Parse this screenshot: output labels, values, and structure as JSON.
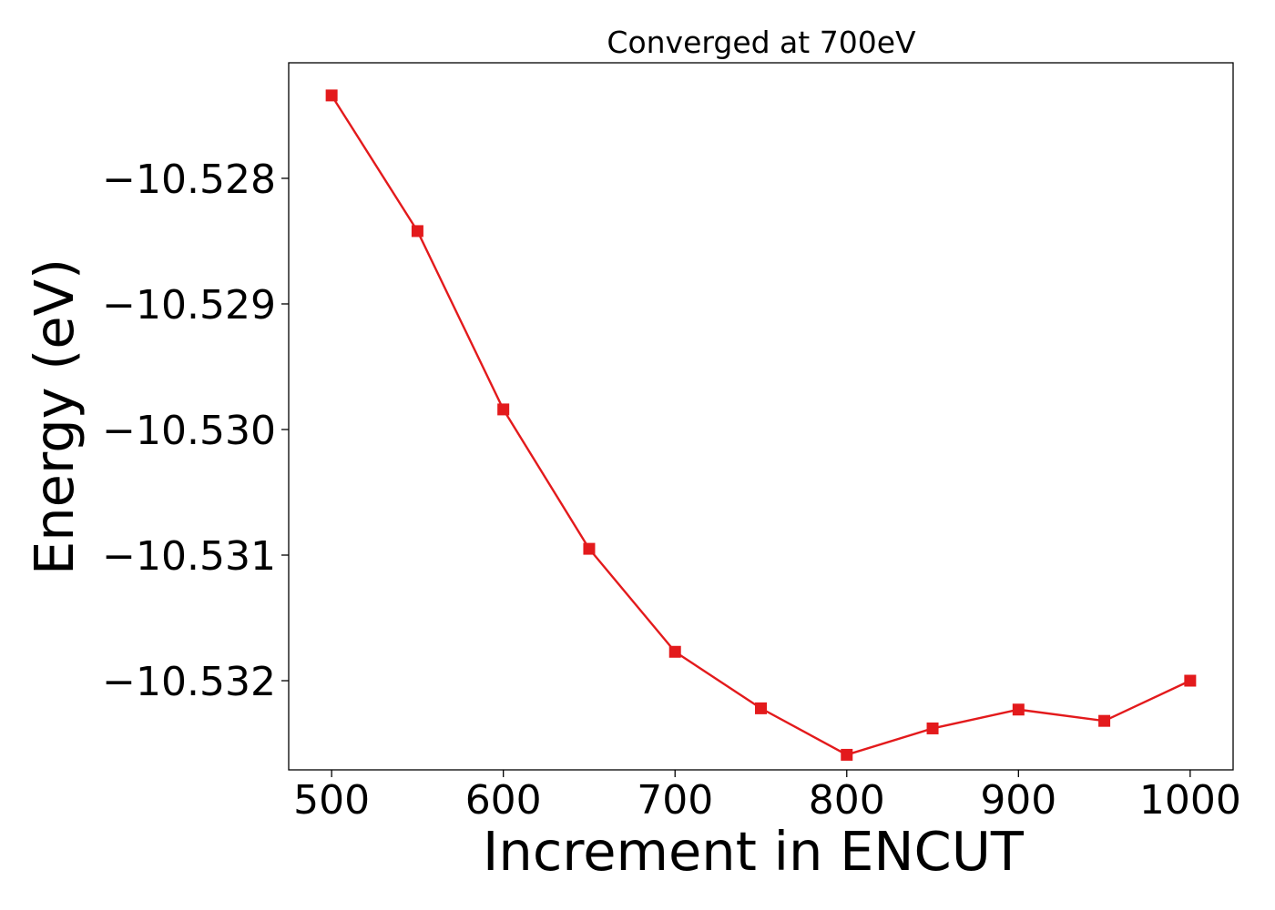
{
  "chart_data": {
    "type": "line",
    "title": "Converged at 700eV",
    "xlabel": "Increment in ENCUT",
    "ylabel": "Energy (eV)",
    "x": [
      500,
      550,
      600,
      650,
      700,
      750,
      800,
      850,
      900,
      950,
      1000
    ],
    "series": [
      {
        "values": [
          -10.52734,
          -10.52842,
          -10.52984,
          -10.53095,
          -10.53177,
          -10.53222,
          -10.53259,
          -10.53238,
          -10.53223,
          -10.53232,
          -10.532
        ],
        "color": "#e31a1c",
        "marker": "square"
      }
    ],
    "xticks": [
      500,
      600,
      700,
      800,
      900,
      1000
    ],
    "yticks": [
      -10.528,
      -10.529,
      -10.53,
      -10.531,
      -10.532
    ],
    "xtick_labels": [
      "500",
      "600",
      "700",
      "800",
      "900",
      "1000"
    ],
    "ytick_labels": [
      "−10.528",
      "−10.529",
      "−10.530",
      "−10.531",
      "−10.532"
    ],
    "xlim": [
      475,
      1025
    ],
    "ylim": [
      -10.53271,
      -10.52708
    ],
    "grid": false,
    "legend": "none"
  }
}
